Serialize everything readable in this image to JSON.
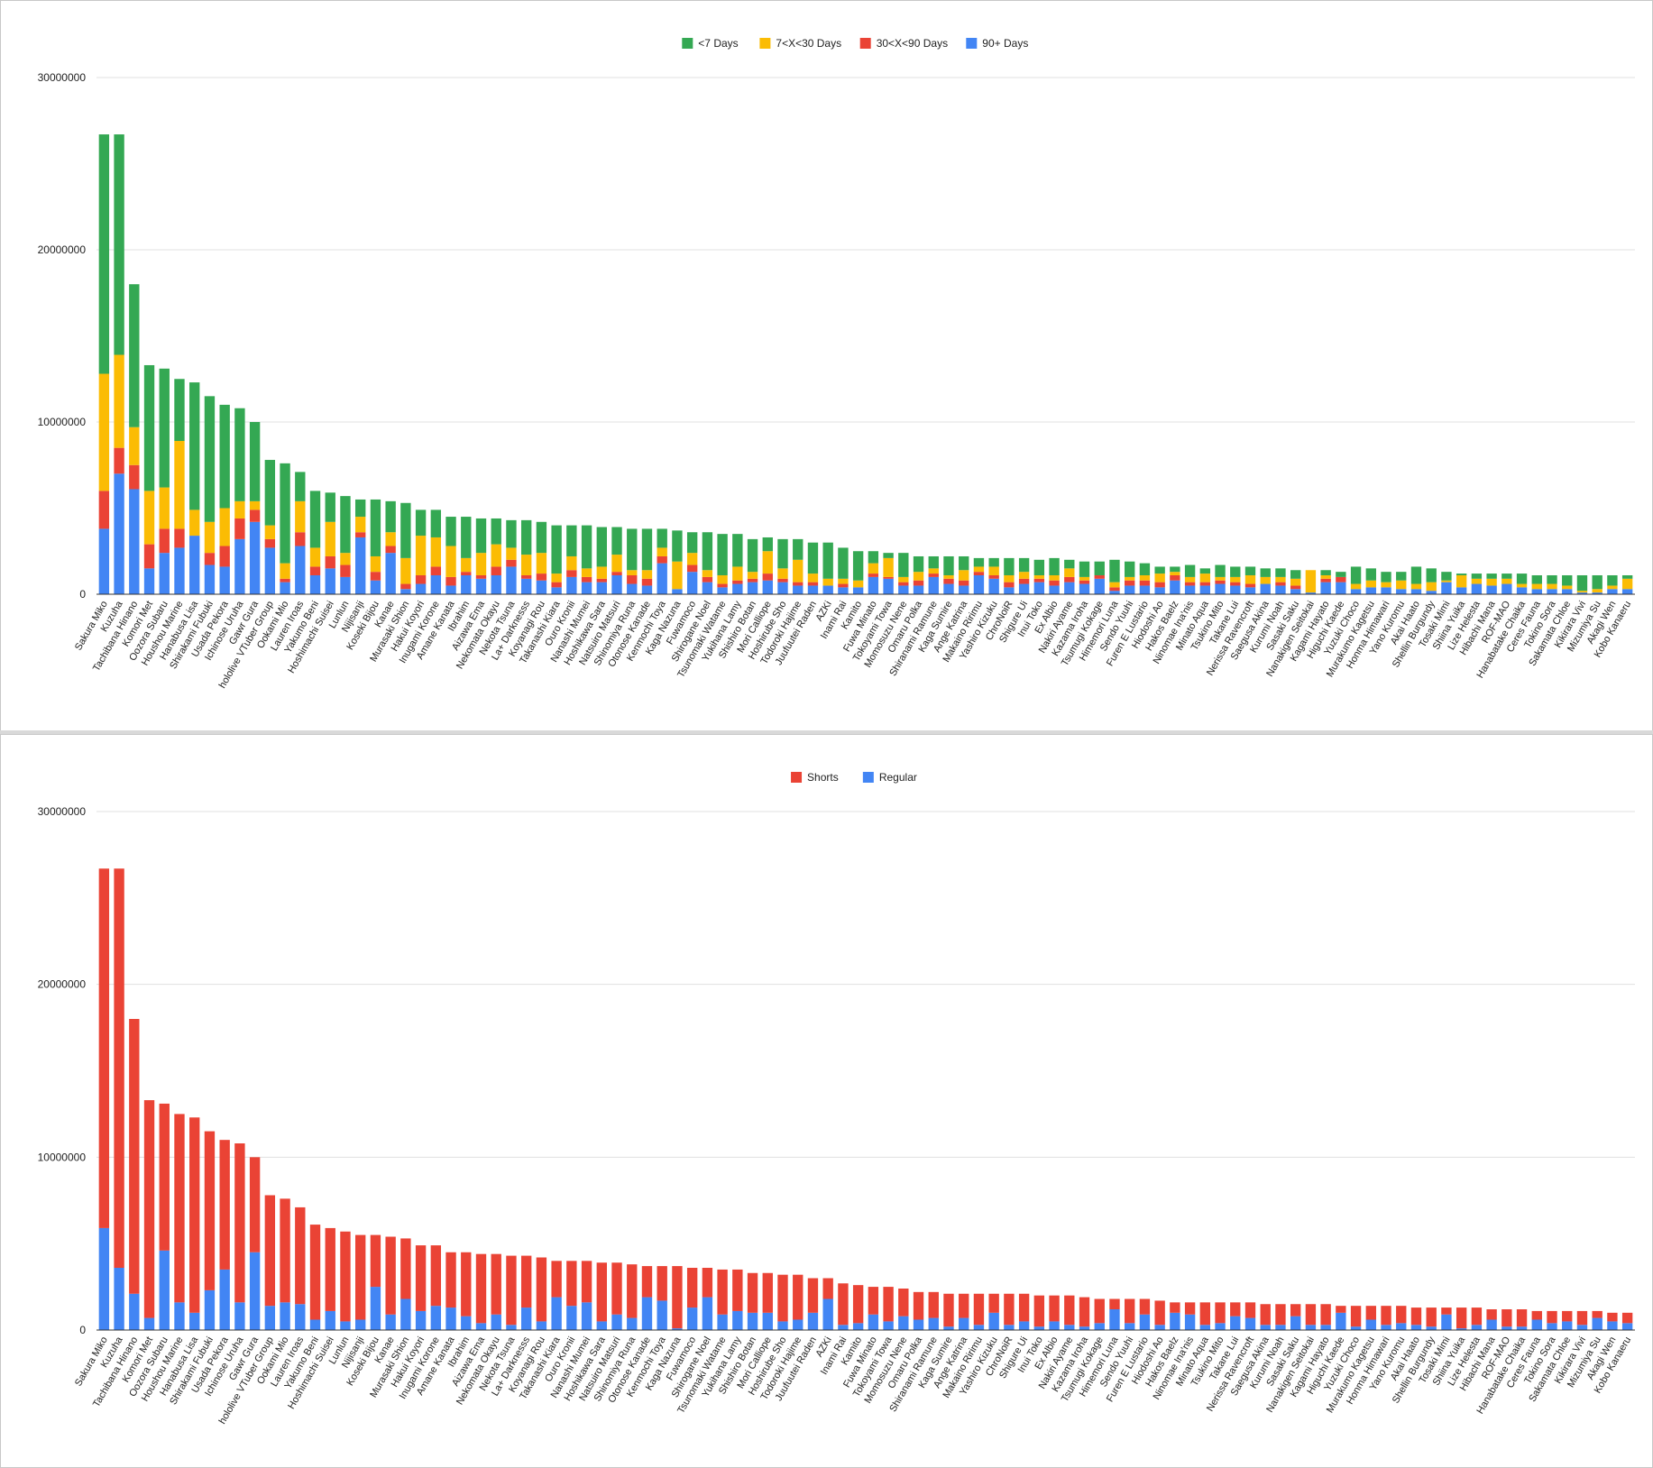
{
  "colors": {
    "green": "#34a853",
    "yellow": "#fbbc04",
    "red": "#ea4335",
    "blue": "#4285f4",
    "grid": "#e0e0e0",
    "axis": "#333333",
    "text": "#222222"
  },
  "chart_data": [
    {
      "type": "bar",
      "stacked": true,
      "legend_position": "top",
      "grid": true,
      "ylim": [
        0,
        30000000
      ],
      "yticks": [
        "0",
        "10000000",
        "20000000",
        "30000000"
      ],
      "categories": [
        "Sakura Miko",
        "Kuzuha",
        "Tachibana Hinano",
        "Komori Met",
        "Oozora Subaru",
        "Houshou Marine",
        "Hanabusa Lisa",
        "Shirakami Fubuki",
        "Usada Pekora",
        "Ichinose Uruha",
        "Gawr Gura",
        "hololive VTuber Group",
        "Ookami Mio",
        "Lauren Iroas",
        "Yakumo Beni",
        "Hoshimachi Suisei",
        "Lunlun",
        "Nijisanji",
        "Koseki Bijou",
        "Kanae",
        "Murasaki Shion",
        "Hakui Koyori",
        "Inugami Korone",
        "Amane Kanata",
        "Ibrahim",
        "Aizawa Ema",
        "Nekomata Okayu",
        "Nekota Tsuna",
        "La+ Darknesss",
        "Koyanagi Rou",
        "Takanashi Kiara",
        "Ouro Kronii",
        "Nanashi Mumei",
        "Hoshikawa Sara",
        "Natsuiro Matsuri",
        "Shinomiya Runa",
        "Otonose Kanade",
        "Kenmochi Toya",
        "Kaga Nazuna",
        "Fuwamoco",
        "Shirogane Noel",
        "Tsunomaki Watame",
        "Yukihana Lamy",
        "Shishiro Botan",
        "Mori Calliope",
        "Hoshirube Sho",
        "Todoroki Hajime",
        "Juufuutei Raden",
        "AZKi",
        "Inami Rai",
        "Kamito",
        "Fuwa Minato",
        "Tokoyami Towa",
        "Momosuzu Nene",
        "Omaru Polka",
        "Shiranami Ramune",
        "Kaga Sumire",
        "Ange Katrina",
        "Makaino Ririmu",
        "Yashiro Kizuku",
        "ChroNoiR",
        "Shigure Ui",
        "Inui Toko",
        "Ex Albio",
        "Nakiri Ayame",
        "Kazama Iroha",
        "Tsumugi Kokage",
        "Himemori Luna",
        "Sendo Yuuhi",
        "Furen E Lustario",
        "Hiodoshi Ao",
        "Hakos Baelz",
        "Ninomae Ina'nis",
        "Minato Aqua",
        "Tsukino Mito",
        "Takane Lui",
        "Nerissa Ravencroft",
        "Saegusa Akina",
        "Kurumi Noah",
        "Sasaki Saku",
        "Nanakigen Seitokai",
        "Kagami Hayato",
        "Higuchi Kaede",
        "Yuzuki Choco",
        "Murakumo Kagetsu",
        "Honma Himawari",
        "Yano Kuromu",
        "Akai Haato",
        "Shellin Burgundy",
        "Tosaki Mimi",
        "Shiina Yuika",
        "Lize Helesta",
        "Hibachi Mana",
        "ROF-MAO",
        "Hanabatake Chaika",
        "Ceres Fauna",
        "Tokino Sora",
        "Sakamata Chloe",
        "Kikirara Vivi",
        "Mizumiya Su",
        "Akagi Wen",
        "Kobo Kanaeru"
      ],
      "series": [
        {
          "name": "90+ Days",
          "color": "#4285f4",
          "values": [
            3800000,
            7000000,
            6100000,
            1500000,
            2400000,
            2700000,
            3400000,
            1700000,
            1600000,
            3200000,
            4200000,
            2700000,
            700000,
            2800000,
            1100000,
            1500000,
            1000000,
            3300000,
            800000,
            2400000,
            300000,
            600000,
            1100000,
            500000,
            1100000,
            900000,
            1100000,
            1600000,
            900000,
            800000,
            400000,
            1000000,
            700000,
            700000,
            1100000,
            600000,
            500000,
            1800000,
            300000,
            1300000,
            700000,
            400000,
            600000,
            700000,
            800000,
            700000,
            500000,
            500000,
            500000,
            400000,
            400000,
            1000000,
            900000,
            500000,
            500000,
            1000000,
            600000,
            500000,
            1100000,
            900000,
            400000,
            600000,
            700000,
            500000,
            700000,
            600000,
            900000,
            200000,
            500000,
            500000,
            400000,
            800000,
            500000,
            500000,
            600000,
            500000,
            400000,
            600000,
            500000,
            300000,
            100000,
            700000,
            700000,
            300000,
            400000,
            400000,
            300000,
            300000,
            200000,
            700000,
            400000,
            600000,
            500000,
            600000,
            400000,
            300000,
            300000,
            300000,
            100000,
            100000,
            300000,
            300000
          ]
        },
        {
          "name": "30<X<90 Days",
          "color": "#ea4335",
          "values": [
            2200000,
            1500000,
            1400000,
            1400000,
            1400000,
            1100000,
            0,
            700000,
            1200000,
            1200000,
            700000,
            500000,
            200000,
            800000,
            500000,
            700000,
            700000,
            300000,
            500000,
            400000,
            300000,
            500000,
            500000,
            500000,
            200000,
            200000,
            500000,
            400000,
            200000,
            400000,
            300000,
            400000,
            300000,
            200000,
            200000,
            500000,
            400000,
            400000,
            0,
            400000,
            300000,
            200000,
            200000,
            200000,
            400000,
            200000,
            200000,
            200000,
            0,
            200000,
            0,
            200000,
            100000,
            200000,
            300000,
            200000,
            300000,
            300000,
            200000,
            200000,
            300000,
            300000,
            200000,
            300000,
            300000,
            200000,
            200000,
            200000,
            300000,
            300000,
            300000,
            300000,
            200000,
            200000,
            200000,
            200000,
            200000,
            0,
            200000,
            200000,
            0,
            200000,
            300000,
            0,
            0,
            0,
            0,
            0,
            0,
            0,
            0,
            0,
            0,
            0,
            0,
            0,
            0,
            0,
            0,
            0,
            0,
            0
          ]
        },
        {
          "name": "7<X<30 Days",
          "color": "#fbbc04",
          "values": [
            6800000,
            5400000,
            2200000,
            3100000,
            2400000,
            5100000,
            1500000,
            1800000,
            2200000,
            1000000,
            500000,
            800000,
            900000,
            1800000,
            1100000,
            2000000,
            700000,
            900000,
            900000,
            800000,
            1500000,
            2300000,
            1700000,
            1800000,
            800000,
            1300000,
            1300000,
            700000,
            1200000,
            1200000,
            500000,
            800000,
            500000,
            700000,
            1000000,
            300000,
            500000,
            500000,
            1600000,
            700000,
            400000,
            500000,
            800000,
            400000,
            1300000,
            600000,
            1300000,
            500000,
            400000,
            300000,
            400000,
            600000,
            1100000,
            300000,
            500000,
            300000,
            200000,
            600000,
            300000,
            500000,
            400000,
            400000,
            200000,
            300000,
            500000,
            200000,
            0,
            300000,
            200000,
            300000,
            500000,
            200000,
            300000,
            500000,
            200000,
            300000,
            500000,
            400000,
            300000,
            400000,
            1300000,
            200000,
            0,
            300000,
            400000,
            300000,
            500000,
            300000,
            500000,
            100000,
            700000,
            300000,
            400000,
            300000,
            200000,
            300000,
            300000,
            200000,
            100000,
            200000,
            200000,
            600000
          ]
        },
        {
          "name": "<7 Days",
          "color": "#34a853",
          "values": [
            13900000,
            12800000,
            8300000,
            7300000,
            6900000,
            3600000,
            7400000,
            7300000,
            6000000,
            5400000,
            4600000,
            3800000,
            5800000,
            1700000,
            3300000,
            1700000,
            3300000,
            1000000,
            3300000,
            1800000,
            3200000,
            1500000,
            1600000,
            1700000,
            2400000,
            2000000,
            1500000,
            1600000,
            2000000,
            1800000,
            2800000,
            1800000,
            2500000,
            2300000,
            1600000,
            2400000,
            2400000,
            1100000,
            1800000,
            1200000,
            2200000,
            2400000,
            1900000,
            1900000,
            800000,
            1700000,
            1200000,
            1800000,
            2100000,
            1800000,
            1700000,
            700000,
            300000,
            1400000,
            900000,
            700000,
            1100000,
            800000,
            500000,
            500000,
            1000000,
            800000,
            900000,
            1000000,
            500000,
            900000,
            800000,
            1300000,
            900000,
            700000,
            400000,
            300000,
            700000,
            300000,
            700000,
            600000,
            500000,
            500000,
            500000,
            500000,
            0,
            300000,
            300000,
            1000000,
            700000,
            600000,
            500000,
            1000000,
            800000,
            500000,
            100000,
            300000,
            300000,
            300000,
            600000,
            500000,
            500000,
            600000,
            900000,
            800000,
            600000,
            200000
          ]
        }
      ]
    },
    {
      "type": "bar",
      "stacked": true,
      "legend_position": "top",
      "grid": true,
      "ylim": [
        0,
        30000000
      ],
      "yticks": [
        "0",
        "10000000",
        "20000000",
        "30000000"
      ],
      "categories": [
        "Sakura Miko",
        "Kuzuha",
        "Tachibana Hinano",
        "Komori Met",
        "Oozora Subaru",
        "Houshou Marine",
        "Hanabusa Lisa",
        "Shirakami Fubuki",
        "Usada Pekora",
        "Ichinose Uruha",
        "Gawr Gura",
        "hololive VTuber Group",
        "Ookami Mio",
        "Lauren Iroas",
        "Yakumo Beni",
        "Hoshimachi Suisei",
        "Lunlun",
        "Nijisanji",
        "Koseki Bijou",
        "Kanae",
        "Murasaki Shion",
        "Hakui Koyori",
        "Inugami Korone",
        "Amane Kanata",
        "Ibrahim",
        "Aizawa Ema",
        "Nekomata Okayu",
        "Nekota Tsuna",
        "La+ Darknesss",
        "Koyanagi Rou",
        "Takanashi Kiara",
        "Ouro Kronii",
        "Nanashi Mumei",
        "Hoshikawa Sara",
        "Natsuiro Matsuri",
        "Shinomiya Runa",
        "Otonose Kanade",
        "Kenmochi Toya",
        "Kaga Nazuna",
        "Fuwamoco",
        "Shirogane Noel",
        "Tsunomaki Watame",
        "Yukihana Lamy",
        "Shishiro Botan",
        "Mori Calliope",
        "Hoshirube Sho",
        "Todoroki Hajime",
        "Juufuutei Raden",
        "AZKi",
        "Inami Rai",
        "Kamito",
        "Fuwa Minato",
        "Tokoyami Towa",
        "Momosuzu Nene",
        "Omaru Polka",
        "Shiranami Ramune",
        "Kaga Sumire",
        "Ange Katrina",
        "Makaino Ririmu",
        "Yashiro Kizuku",
        "ChroNoiR",
        "Shigure Ui",
        "Inui Toko",
        "Ex Albio",
        "Nakiri Ayame",
        "Kazama Iroha",
        "Tsumugi Kokage",
        "Himemori Luna",
        "Sendo Yuuhi",
        "Furen E Lustario",
        "Hiodoshi Ao",
        "Hakos Baelz",
        "Ninomae Ina'nis",
        "Minato Aqua",
        "Tsukino Mito",
        "Takane Lui",
        "Nerissa Ravencroft",
        "Saegusa Akina",
        "Kurumi Noah",
        "Sasaki Saku",
        "Nanakigen Seitokai",
        "Kagami Hayato",
        "Higuchi Kaede",
        "Yuzuki Choco",
        "Murakumo Kagetsu",
        "Honma Himawari",
        "Yano Kuromu",
        "Akai Haato",
        "Shellin Burgundy",
        "Tosaki Mimi",
        "Shiina Yuika",
        "Lize Helesta",
        "Hibachi Mana",
        "ROF-MAO",
        "Hanabatake Chaika",
        "Ceres Fauna",
        "Tokino Sora",
        "Sakamata Chloe",
        "Kikirara Vivi",
        "Mizumiya Su",
        "Akagi Wen",
        "Kobo Kanaeru"
      ],
      "series": [
        {
          "name": "Regular",
          "color": "#4285f4",
          "values": [
            5900000,
            3600000,
            2100000,
            700000,
            4600000,
            1600000,
            1000000,
            2300000,
            3500000,
            1600000,
            4500000,
            1400000,
            1600000,
            1500000,
            600000,
            1100000,
            500000,
            600000,
            2500000,
            900000,
            1800000,
            1100000,
            1400000,
            1300000,
            800000,
            400000,
            900000,
            300000,
            1300000,
            500000,
            1900000,
            1400000,
            1600000,
            500000,
            900000,
            700000,
            1900000,
            1700000,
            100000,
            1300000,
            1900000,
            900000,
            1100000,
            1000000,
            1000000,
            500000,
            600000,
            1000000,
            1800000,
            300000,
            400000,
            900000,
            500000,
            800000,
            600000,
            700000,
            200000,
            700000,
            300000,
            1000000,
            300000,
            500000,
            200000,
            500000,
            300000,
            200000,
            400000,
            1200000,
            400000,
            900000,
            300000,
            1000000,
            900000,
            300000,
            400000,
            800000,
            700000,
            300000,
            300000,
            800000,
            300000,
            300000,
            1000000,
            200000,
            600000,
            300000,
            400000,
            300000,
            200000,
            900000,
            100000,
            300000,
            600000,
            200000,
            200000,
            600000,
            400000,
            500000,
            300000,
            700000,
            500000,
            400000
          ]
        },
        {
          "name": "Shorts",
          "color": "#ea4335",
          "values": [
            20800000,
            23100000,
            15900000,
            12600000,
            8500000,
            10900000,
            11300000,
            9200000,
            7500000,
            9200000,
            5500000,
            6400000,
            6000000,
            5600000,
            5500000,
            4800000,
            5200000,
            4900000,
            3000000,
            4500000,
            3500000,
            3800000,
            3500000,
            3200000,
            3700000,
            4000000,
            3500000,
            4000000,
            3000000,
            3700000,
            2100000,
            2600000,
            2400000,
            3400000,
            3000000,
            3100000,
            1800000,
            2000000,
            3600000,
            2300000,
            1700000,
            2600000,
            2400000,
            2300000,
            2300000,
            2700000,
            2600000,
            2000000,
            1200000,
            2400000,
            2200000,
            1600000,
            2000000,
            1600000,
            1600000,
            1500000,
            1900000,
            1400000,
            1800000,
            1100000,
            1800000,
            1600000,
            1800000,
            1500000,
            1700000,
            1700000,
            1400000,
            600000,
            1400000,
            900000,
            1400000,
            600000,
            700000,
            1300000,
            1200000,
            800000,
            900000,
            1200000,
            1200000,
            700000,
            1200000,
            1200000,
            400000,
            1200000,
            800000,
            1100000,
            1000000,
            1000000,
            1100000,
            400000,
            1200000,
            1000000,
            600000,
            1000000,
            1000000,
            500000,
            700000,
            600000,
            800000,
            400000,
            500000,
            600000
          ]
        }
      ]
    }
  ]
}
